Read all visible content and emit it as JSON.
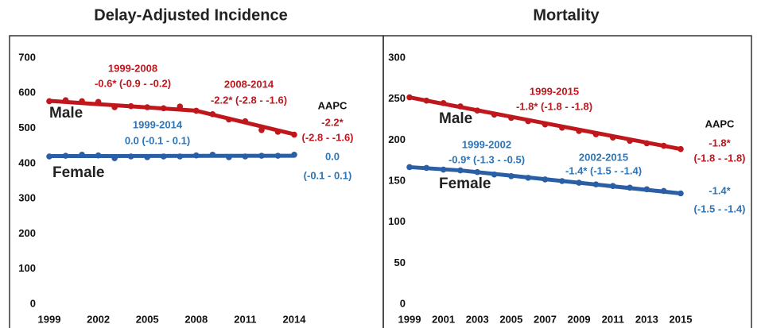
{
  "chart_data": [
    {
      "type": "line",
      "title": "Delay-Adjusted Incidence",
      "x": [
        1999,
        2000,
        2001,
        2002,
        2003,
        2004,
        2005,
        2006,
        2007,
        2008,
        2009,
        2010,
        2011,
        2012,
        2013,
        2014
      ],
      "xlim": [
        1999,
        2014
      ],
      "xticks": [
        1999,
        2002,
        2005,
        2008,
        2011,
        2014
      ],
      "ylim": [
        0,
        700
      ],
      "yticks": [
        0,
        100,
        200,
        300,
        400,
        500,
        600,
        700
      ],
      "series": [
        {
          "name": "Male",
          "color": "#c0171d",
          "values": [
            577,
            580,
            577,
            575,
            560,
            563,
            560,
            557,
            562,
            550,
            540,
            525,
            520,
            495,
            490,
            482
          ],
          "fit": [
            {
              "x": [
                1999,
                2008
              ],
              "values": [
                578,
                550
              ]
            },
            {
              "x": [
                2008,
                2014
              ],
              "values": [
                550,
                483
              ]
            }
          ]
        },
        {
          "name": "Female",
          "color": "#2a5fa5",
          "values": [
            420,
            422,
            425,
            423,
            415,
            420,
            418,
            420,
            420,
            423,
            425,
            418,
            420,
            422,
            422,
            425
          ],
          "fit": [
            {
              "x": [
                1999,
                2014
              ],
              "values": [
                421,
                422
              ]
            }
          ]
        }
      ],
      "annotations": [
        {
          "text": "1999-2008",
          "color": "#c0171d"
        },
        {
          "text": "-0.6* (-0.9 - -0.2)",
          "color": "#c0171d"
        },
        {
          "text": "2008-2014",
          "color": "#c0171d"
        },
        {
          "text": "-2.2* (-2.8 - -1.6)",
          "color": "#c0171d"
        },
        {
          "text": "1999-2014",
          "color": "#2e75b6"
        },
        {
          "text": "0.0 (-0.1 - 0.1)",
          "color": "#2e75b6"
        },
        {
          "text": "AAPC",
          "color": "#111111"
        },
        {
          "text": "-2.2*",
          "color": "#c0171d"
        },
        {
          "text": "(-2.8 - -1.6)",
          "color": "#c0171d"
        },
        {
          "text": "0.0",
          "color": "#2e75b6"
        },
        {
          "text": "(-0.1 - 0.1)",
          "color": "#2e75b6"
        }
      ]
    },
    {
      "type": "line",
      "title": "Mortality",
      "x": [
        1999,
        2000,
        2001,
        2002,
        2003,
        2004,
        2005,
        2006,
        2007,
        2008,
        2009,
        2010,
        2011,
        2012,
        2013,
        2014,
        2015
      ],
      "xlim": [
        1999,
        2015
      ],
      "xticks": [
        1999,
        2001,
        2003,
        2005,
        2007,
        2009,
        2011,
        2013,
        2015
      ],
      "ylim": [
        0,
        300
      ],
      "yticks": [
        0,
        50,
        100,
        150,
        200,
        250,
        300
      ],
      "series": [
        {
          "name": "Male",
          "color": "#c0171d",
          "values": [
            252,
            248,
            245,
            241,
            236,
            231,
            227,
            223,
            219,
            215,
            211,
            207,
            203,
            199,
            196,
            193,
            189
          ],
          "fit": [
            {
              "x": [
                1999,
                2015
              ],
              "values": [
                252,
                189
              ]
            }
          ]
        },
        {
          "name": "Female",
          "color": "#2a5fa5",
          "values": [
            167,
            166,
            164,
            163,
            161,
            158,
            156,
            154,
            152,
            150,
            148,
            146,
            144,
            142,
            140,
            138,
            135
          ],
          "fit": [
            {
              "x": [
                1999,
                2002
              ],
              "values": [
                167,
                163
              ]
            },
            {
              "x": [
                2002,
                2015
              ],
              "values": [
                163,
                135
              ]
            }
          ]
        }
      ],
      "annotations": [
        {
          "text": "1999-2015",
          "color": "#c0171d"
        },
        {
          "text": "-1.8* (-1.8 - -1.8)",
          "color": "#c0171d"
        },
        {
          "text": "1999-2002",
          "color": "#2e75b6"
        },
        {
          "text": "-0.9* (-1.3 - -0.5)",
          "color": "#2e75b6"
        },
        {
          "text": "2002-2015",
          "color": "#2e75b6"
        },
        {
          "text": "-1.4* (-1.5 - -1.4)",
          "color": "#2e75b6"
        },
        {
          "text": "AAPC",
          "color": "#111111"
        },
        {
          "text": "-1.8*",
          "color": "#c0171d"
        },
        {
          "text": "(-1.8 - -1.8)",
          "color": "#c0171d"
        },
        {
          "text": "-1.4*",
          "color": "#2e75b6"
        },
        {
          "text": "(-1.5 - -1.4)",
          "color": "#2e75b6"
        }
      ]
    }
  ]
}
